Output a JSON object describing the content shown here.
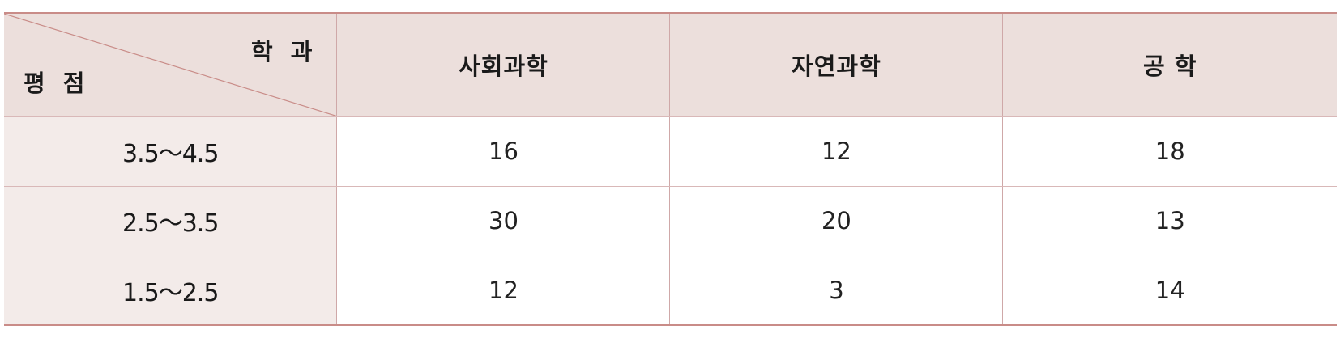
{
  "table": {
    "corner": {
      "top_right_label": "학 과",
      "bottom_left_label": "평 점"
    },
    "columns": [
      "사회과학",
      "자연과학",
      "공 학"
    ],
    "rows": [
      {
        "label": "3.5～4.5",
        "values": [
          "16",
          "12",
          "18"
        ]
      },
      {
        "label": "2.5～3.5",
        "values": [
          "30",
          "20",
          "13"
        ]
      },
      {
        "label": "1.5～2.5",
        "values": [
          "12",
          "3",
          "14"
        ]
      }
    ]
  },
  "colors": {
    "header_background": "#ecdfdc",
    "row_label_background": "#f3ebe9",
    "rule_color": "#c98c88",
    "grid_line": "#cfa8a8"
  }
}
